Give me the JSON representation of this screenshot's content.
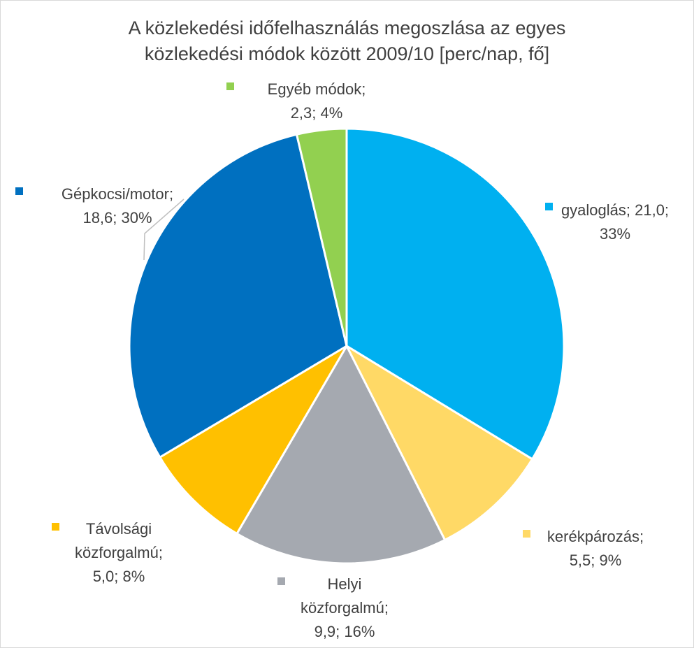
{
  "chart_data": {
    "type": "pie",
    "title_lines": [
      "A közlekedési időfelhasználás megoszlása az egyes",
      "közlekedési módok között 2009/10 [perc/nap, fő]"
    ],
    "slices": [
      {
        "name": "gyaloglás",
        "value": 21.0,
        "percent": 33,
        "color": "#00b0f0",
        "label_lines": [
          "gyaloglás; 21,0;",
          "33%"
        ]
      },
      {
        "name": "kerékpározás",
        "value": 5.5,
        "percent": 9,
        "color": "#ffd966",
        "label_lines": [
          "kerékpározás;",
          "5,5; 9%"
        ]
      },
      {
        "name": "Helyi közforgalmú",
        "value": 9.9,
        "percent": 16,
        "color": "#a5a9b0",
        "label_lines": [
          "Helyi",
          "közforgalmú;",
          "9,9; 16%"
        ]
      },
      {
        "name": "Távolsági közforgalmú",
        "value": 5.0,
        "percent": 8,
        "color": "#ffc000",
        "label_lines": [
          "Távolsági",
          "közforgalmú;",
          "5,0; 8%"
        ]
      },
      {
        "name": "Gépkocsi/motor",
        "value": 18.6,
        "percent": 30,
        "color": "#0070c0",
        "label_lines": [
          "Gépkocsi/motor;",
          "18,6; 30%"
        ]
      },
      {
        "name": "Egyéb módok",
        "value": 2.3,
        "percent": 4,
        "color": "#92d050",
        "label_lines": [
          "Egyéb módok;",
          "2,3; 4%"
        ]
      }
    ],
    "start_angle_deg": 0,
    "direction": "clockwise",
    "legend": "none"
  }
}
